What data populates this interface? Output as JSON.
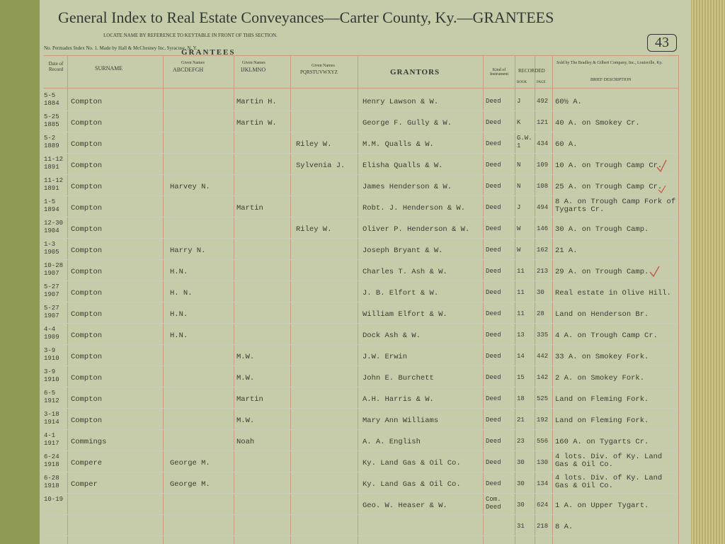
{
  "header": {
    "title": "General Index to Real Estate Conveyances—Carter County, Ky.—GRANTEES",
    "page_number": "43",
    "locate_note": "LOCATE NAME BY REFERENCE TO KEYTABLE IN FRONT OF THIS SECTION.",
    "maker_note": "No. Permadex Index No. 1. Made by Hall & McChesney Inc, Syracuse, N. Y.",
    "seller_note": "Sold by The Bradley & Gilbert Company, Inc., Louisville, Ky."
  },
  "columns": {
    "date": "Date of Record",
    "grantees": "GRANTEES",
    "surname": "SURNAME",
    "given_caption": "Given Names",
    "given_abcdefgh": "ABCDEFGH",
    "given_ijklmno": "IJKLMNO",
    "given_pqrstuvwxyz": "PQRSTUVWXYZ",
    "grantors": "GRANTORS",
    "kind": "Kind of Instrument",
    "recorded": "RECORDED",
    "book": "BOOK",
    "page": "PAGE",
    "description": "BRIEF DESCRIPTION"
  },
  "rows": [
    {
      "date": "5-5 1884",
      "surname": "Compton",
      "given_ijklmno": "Martin H.",
      "grantor": "Henry Lawson & W.",
      "kind": "Deed",
      "book": "J",
      "page": "492",
      "description": "60½ A."
    },
    {
      "date": "5-25 1885",
      "surname": "Compton",
      "given_ijklmno": "Martin W.",
      "grantor": "George F. Gully & W.",
      "kind": "Deed",
      "book": "K",
      "page": "121",
      "description": "40 A. on Smokey Cr."
    },
    {
      "date": "5-2 1889",
      "surname": "Compton",
      "given_pqrstuvwxyz": "Riley W.",
      "grantor": "M.M. Qualls & W.",
      "kind": "Deed",
      "book": "G.W. 1",
      "page": "434",
      "description": "60 A."
    },
    {
      "date": "11-12 1891",
      "surname": "Compton",
      "given_pqrstuvwxyz": "Sylvenia J.",
      "grantor": "Elisha Qualls & W.",
      "kind": "Deed",
      "book": "N",
      "page": "109",
      "description": "10 A. on Trough Camp Cr."
    },
    {
      "date": "11-12 1891",
      "surname": "Compton",
      "given_abcdefgh": "Harvey N.",
      "grantor": "James Henderson & W.",
      "kind": "Deed",
      "book": "N",
      "page": "108",
      "description": "25 A. on Trough Camp Cr."
    },
    {
      "date": "1-5 1894",
      "surname": "Compton",
      "given_ijklmno": "Martin",
      "grantor": "Robt. J. Henderson & W.",
      "kind": "Deed",
      "book": "J",
      "page": "494",
      "description": "8 A. on Trough Camp Fork of Tygarts Cr."
    },
    {
      "date": "12-30 1904",
      "surname": "Compton",
      "given_pqrstuvwxyz": "Riley W.",
      "grantor": "Oliver P. Henderson & W.",
      "kind": "Deed",
      "book": "W",
      "page": "146",
      "description": "30 A. on Trough Camp."
    },
    {
      "date": "1-3 1905",
      "surname": "Compton",
      "given_abcdefgh": "Harry N.",
      "grantor": "Joseph Bryant & W.",
      "kind": "Deed",
      "book": "W",
      "page": "162",
      "description": "21 A."
    },
    {
      "date": "10-28 1907",
      "surname": "Compton",
      "given_abcdefgh": "H.N.",
      "grantor": "Charles T. Ash & W.",
      "kind": "Deed",
      "book": "11",
      "page": "213",
      "description": "29 A. on Trough Camp."
    },
    {
      "date": "5-27 1907",
      "surname": "Compton",
      "given_abcdefgh": "H. N.",
      "grantor": "J. B. Elfort & W.",
      "kind": "Deed",
      "book": "11",
      "page": "30",
      "description": "Real estate in Olive Hill."
    },
    {
      "date": "5-27 1907",
      "surname": "Compton",
      "given_abcdefgh": "H.N.",
      "grantor": "William Elfort & W.",
      "kind": "Deed",
      "book": "11",
      "page": "28",
      "description": "Land on Henderson Br."
    },
    {
      "date": "4-4 1909",
      "surname": "Compton",
      "given_abcdefgh": "H.N.",
      "grantor": "Dock Ash & W.",
      "kind": "Deed",
      "book": "13",
      "page": "335",
      "description": "4 A. on Trough Camp Cr."
    },
    {
      "date": "3-9 1910",
      "surname": "Compton",
      "given_ijklmno": "M.W.",
      "grantor": "J.W. Erwin",
      "kind": "Deed",
      "book": "14",
      "page": "442",
      "description": "33 A. on Smokey Fork."
    },
    {
      "date": "3-9 1910",
      "surname": "Compton",
      "given_ijklmno": "M.W.",
      "grantor": "John E. Burchett",
      "kind": "Deed",
      "book": "15",
      "page": "142",
      "description": "2 A. on Smokey Fork."
    },
    {
      "date": "6-5 1912",
      "surname": "Compton",
      "given_ijklmno": "Martin",
      "grantor": "A.H. Harris & W.",
      "kind": "Deed",
      "book": "18",
      "page": "525",
      "description": "Land on Fleming Fork."
    },
    {
      "date": "3-18 1914",
      "surname": "Compton",
      "given_ijklmno": "M.W.",
      "grantor": "Mary Ann Williams",
      "kind": "Deed",
      "book": "21",
      "page": "192",
      "description": "Land on Fleming Fork."
    },
    {
      "date": "4-1 1917",
      "surname": "Commings",
      "given_ijklmno": "Noah",
      "grantor": "A. A. English",
      "kind": "Deed",
      "book": "23",
      "page": "556",
      "description": "160 A. on Tygarts Cr."
    },
    {
      "date": "6-24 1918",
      "surname": "Compere",
      "given_abcdefgh": "George M.",
      "grantor": "Ky. Land Gas & Oil Co.",
      "kind": "Deed",
      "book": "30",
      "page": "130",
      "description": "4 lots. Div. of Ky. Land Gas & Oil Co."
    },
    {
      "date": "6-28 1918",
      "surname": "Comper",
      "given_abcdefgh": "George M.",
      "grantor": "Ky. Land Gas & Oil Co.",
      "kind": "Deed",
      "book": "30",
      "page": "134",
      "description": "4 lots. Div. of Ky. Land Gas & Oil Co."
    },
    {
      "date": "10-19",
      "grantor": "Geo. W. Heaser & W.",
      "kind": "Com. Deed",
      "book": "30",
      "page": "624",
      "description": "1 A. on Upper Tygart."
    },
    {
      "book": "31",
      "page": "218",
      "description": "8 A."
    }
  ]
}
